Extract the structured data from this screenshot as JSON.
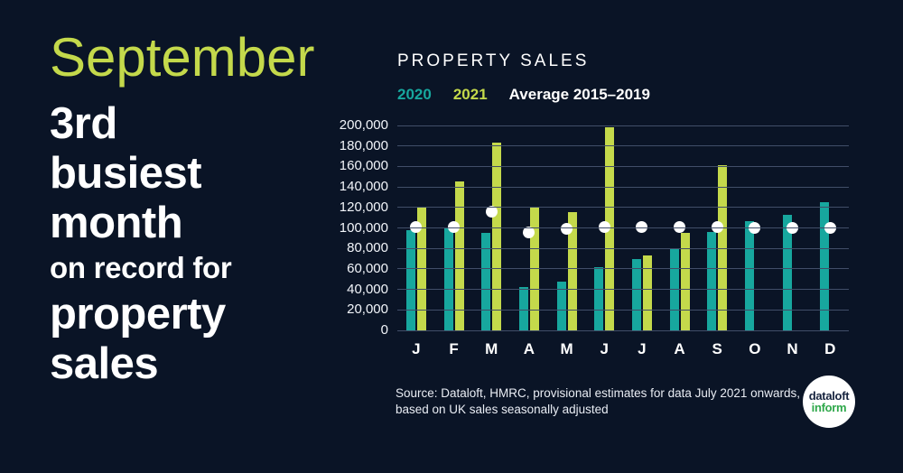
{
  "page": {
    "background": "#0a1426"
  },
  "headline": {
    "month": "September",
    "month_color": "#c4d94b",
    "line1": "3rd",
    "line2": "busiest",
    "line3": "month",
    "line4": "on record for",
    "line5": "property",
    "line6": "sales"
  },
  "chart_data": {
    "type": "bar",
    "title": "PROPERTY SALES",
    "categories": [
      "J",
      "F",
      "M",
      "A",
      "M",
      "J",
      "J",
      "A",
      "S",
      "O",
      "N",
      "D"
    ],
    "series": [
      {
        "name": "2020",
        "type": "bar",
        "color": "#17a79e",
        "values": [
          98000,
          100000,
          95000,
          42000,
          48000,
          62000,
          70000,
          80000,
          96000,
          107000,
          113000,
          125000
        ]
      },
      {
        "name": "2021",
        "type": "bar",
        "color": "#c4d94b",
        "values": [
          121000,
          145000,
          183000,
          120000,
          115000,
          198000,
          73000,
          95000,
          161000,
          null,
          null,
          null
        ]
      },
      {
        "name": "Average 2015–2019",
        "type": "scatter",
        "color": "#ffffff",
        "values": [
          101000,
          101000,
          116000,
          96000,
          99000,
          101000,
          101000,
          101000,
          101000,
          100000,
          100000,
          100000
        ]
      }
    ],
    "ylim": [
      0,
      200000
    ],
    "ytick_interval": 20000,
    "ytick_labels": [
      "0",
      "20,000",
      "40,000",
      "60,000",
      "80,000",
      "100,000",
      "120,000",
      "140,000",
      "160,000",
      "180,000",
      "200,000"
    ],
    "grid": true,
    "gridline_color": "#414e68",
    "legend_position": "top"
  },
  "source": {
    "text": "Source: Dataloft, HMRC, provisional estimates for data July 2021 onwards, based on UK sales seasonally adjusted"
  },
  "logo": {
    "line1": "dataloft",
    "line2": "inform",
    "line1_color": "#16233e",
    "line2_color": "#2fa84b",
    "circle_color": "#ffffff"
  }
}
